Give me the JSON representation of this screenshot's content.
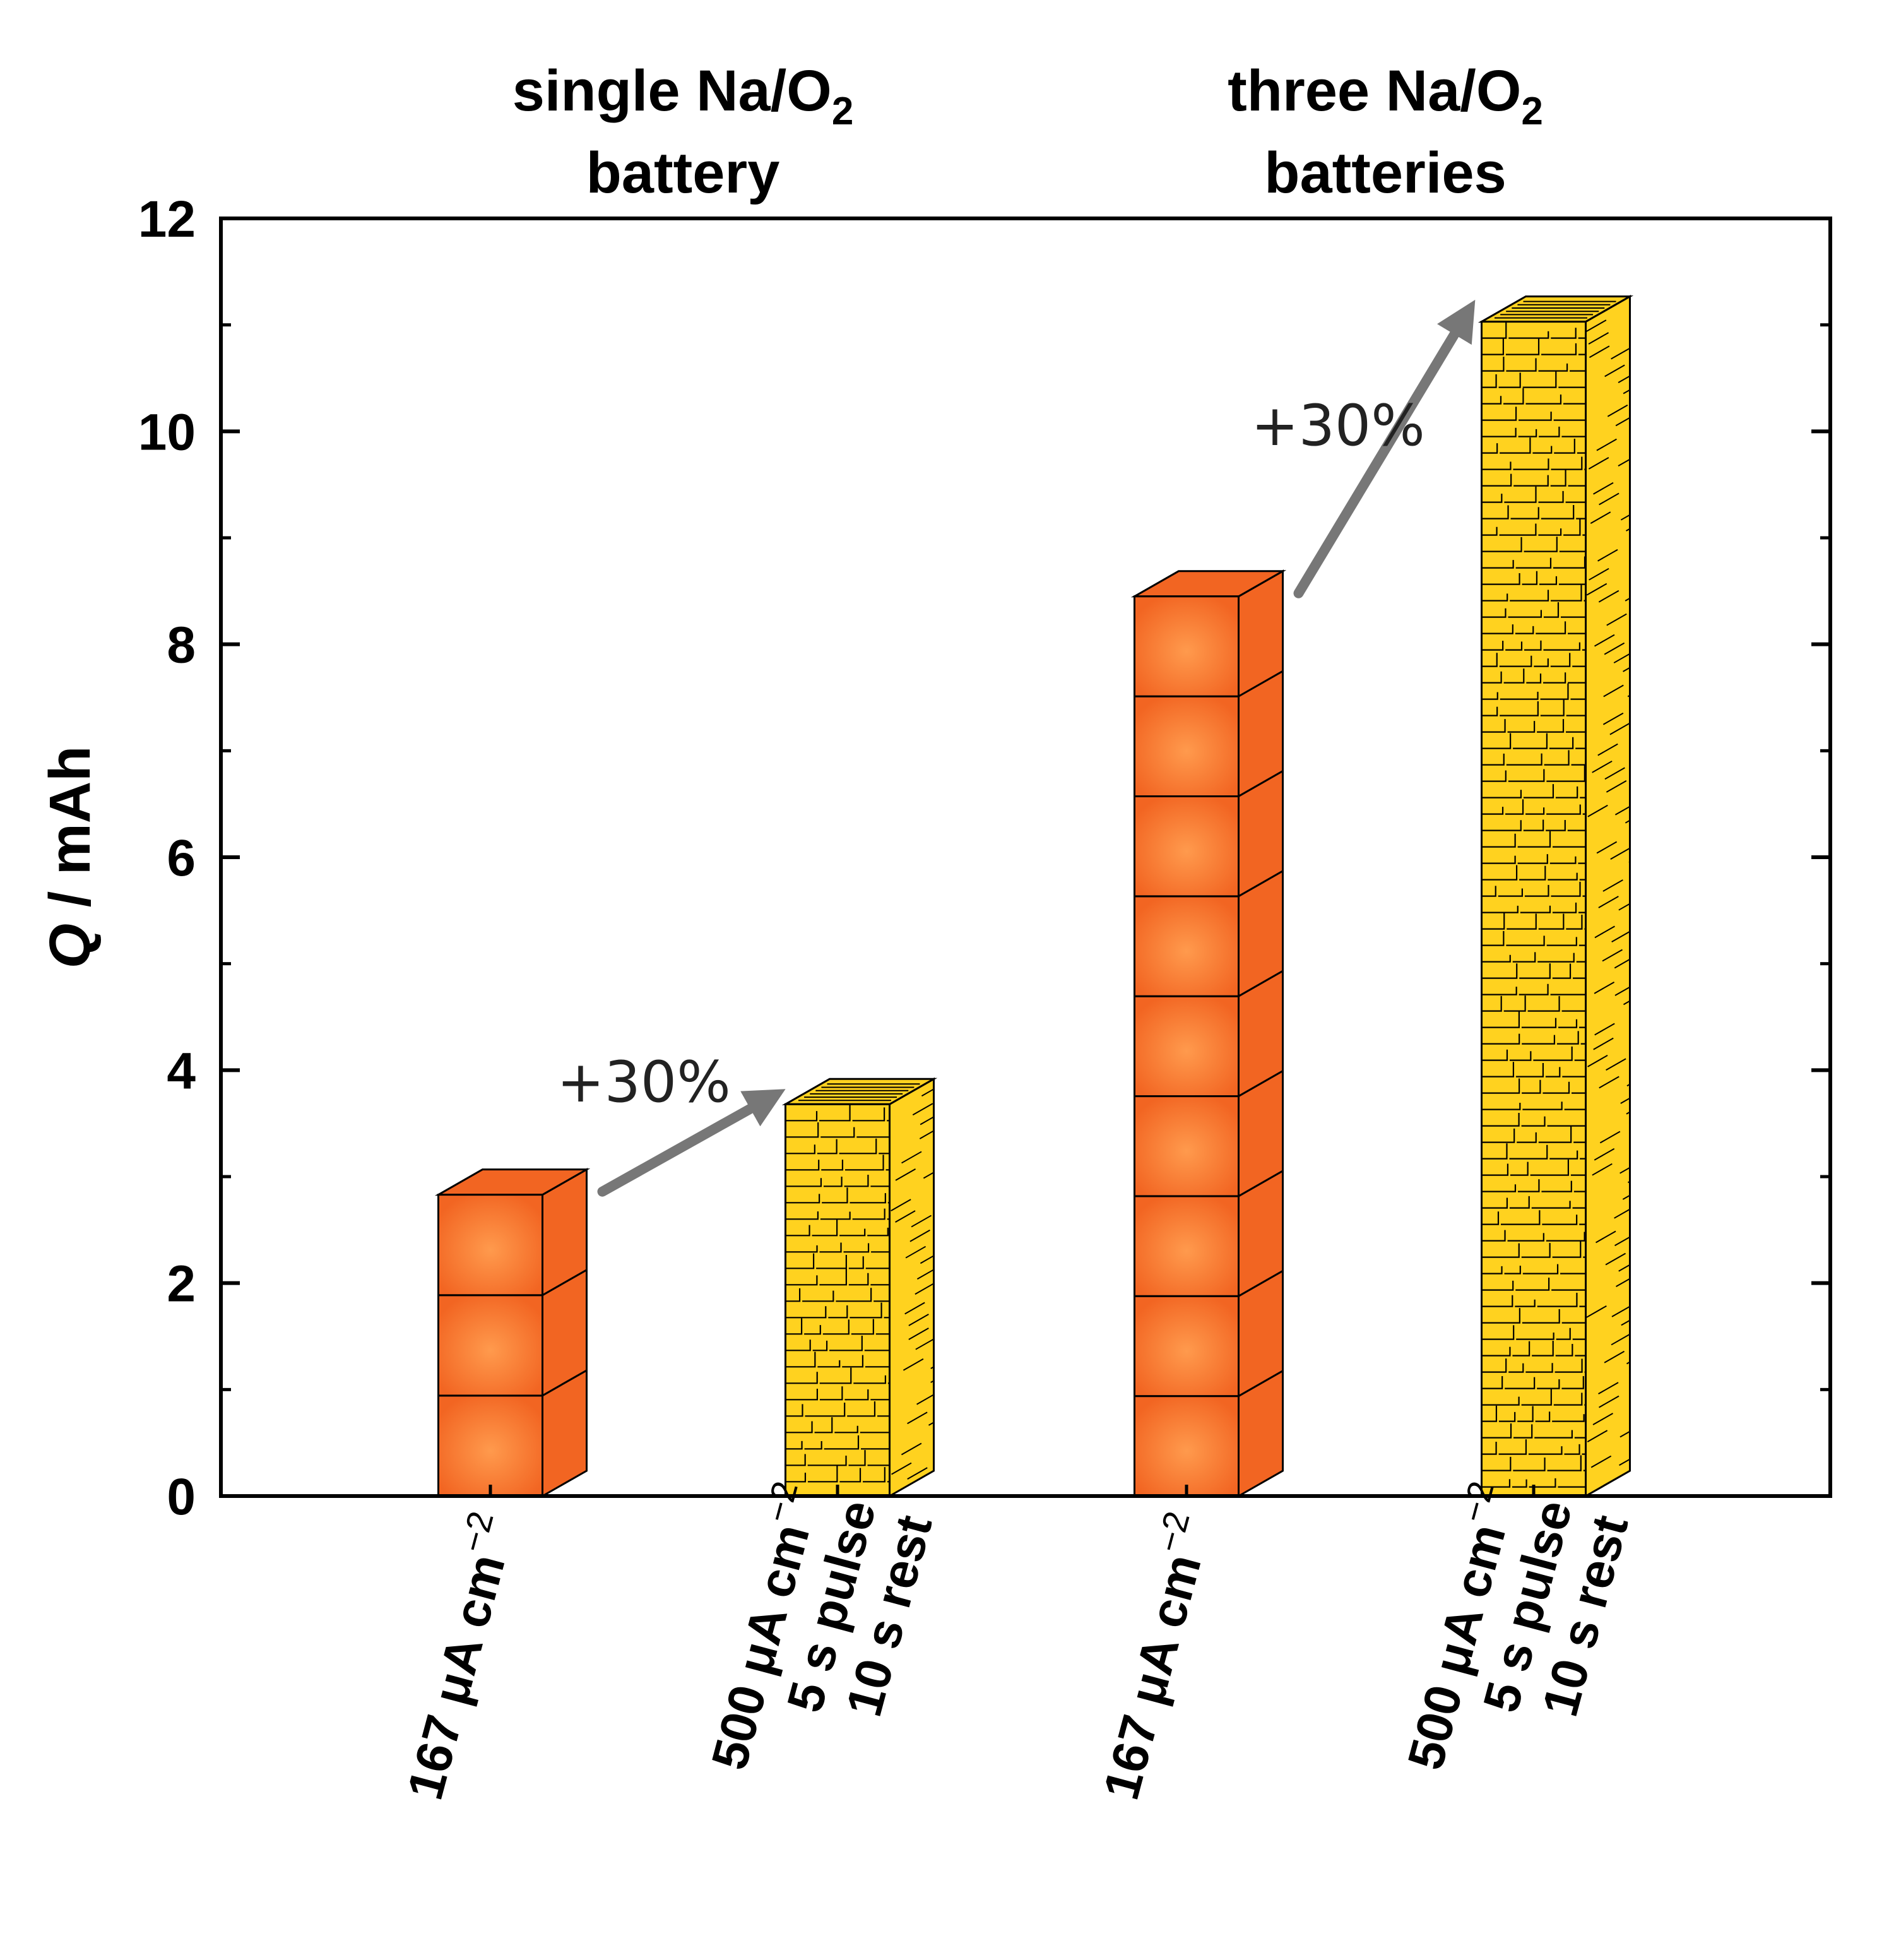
{
  "chart_data": {
    "type": "bar",
    "xlabel": "",
    "ylabel": {
      "italic_symbol": "Q",
      "unit": " / mAh"
    },
    "ylim": [
      0,
      12
    ],
    "yticks": [
      "0",
      "2",
      "4",
      "6",
      "8",
      "10",
      "12"
    ],
    "ytick_values": [
      0,
      2,
      4,
      6,
      8,
      10,
      12
    ],
    "grid": false,
    "groups": [
      {
        "title_line1": "single Na/O",
        "subscript": "2",
        "title_line2": "battery"
      },
      {
        "title_line1": "three Na/O",
        "subscript": "2",
        "title_line2": "batteries"
      }
    ],
    "categories": [
      {
        "lines": [
          "167 μA cm"
        ],
        "superscript": "−2",
        "group": 0
      },
      {
        "lines": [
          "500 μA cm",
          "5 s pulse",
          "10 s rest"
        ],
        "superscript": "−2",
        "group": 0
      },
      {
        "lines": [
          "167 μA cm"
        ],
        "superscript": "−2",
        "group": 1
      },
      {
        "lines": [
          "500 μA cm",
          "5 s pulse",
          "10 s rest"
        ],
        "superscript": "−2",
        "group": 1
      }
    ],
    "series": [
      {
        "name": "bars",
        "values": [
          2.83,
          3.68,
          8.45,
          11.03
        ],
        "styles": [
          "orange",
          "yellow",
          "orange",
          "yellow"
        ]
      }
    ],
    "annotations": [
      {
        "text": "+30%",
        "from_bar": 0,
        "to_bar": 1
      },
      {
        "text": "+30%",
        "from_bar": 2,
        "to_bar": 3
      }
    ]
  },
  "colors": {
    "orange_face": "#f26522",
    "orange_glow": "#ff9a4d",
    "yellow_face": "#ffd21f",
    "arrow": "#777777",
    "axis": "#000000"
  }
}
